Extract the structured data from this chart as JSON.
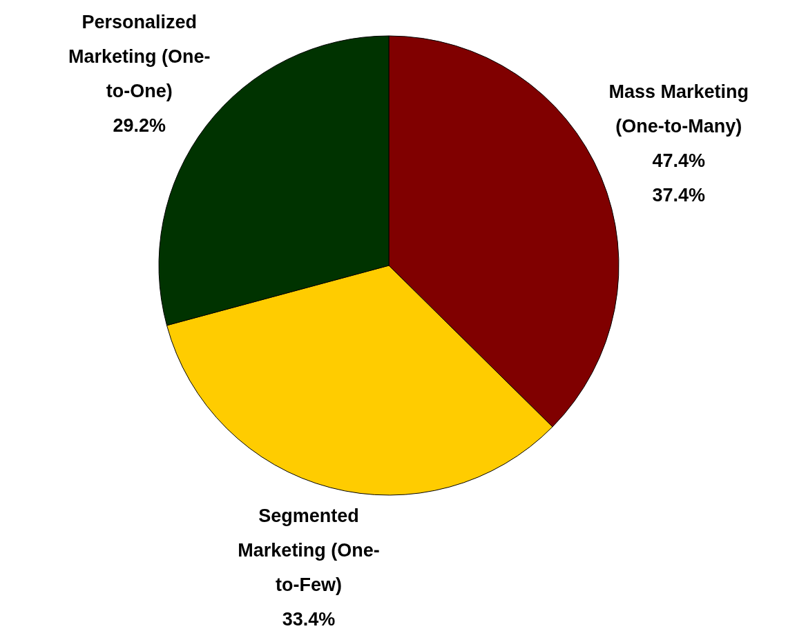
{
  "chart_data": {
    "type": "pie",
    "categories": [
      "Mass Marketing (One-to-Many)",
      "Segmented Marketing (One-to-Few)",
      "Personalized Marketing (One-to-One)"
    ],
    "values": [
      37.4,
      33.4,
      29.2
    ],
    "colors": [
      "#800000",
      "#ffcc00",
      "#003300"
    ],
    "value_labels": [
      "47.4%\n37.4%",
      "33.4%",
      "29.2%"
    ]
  }
}
